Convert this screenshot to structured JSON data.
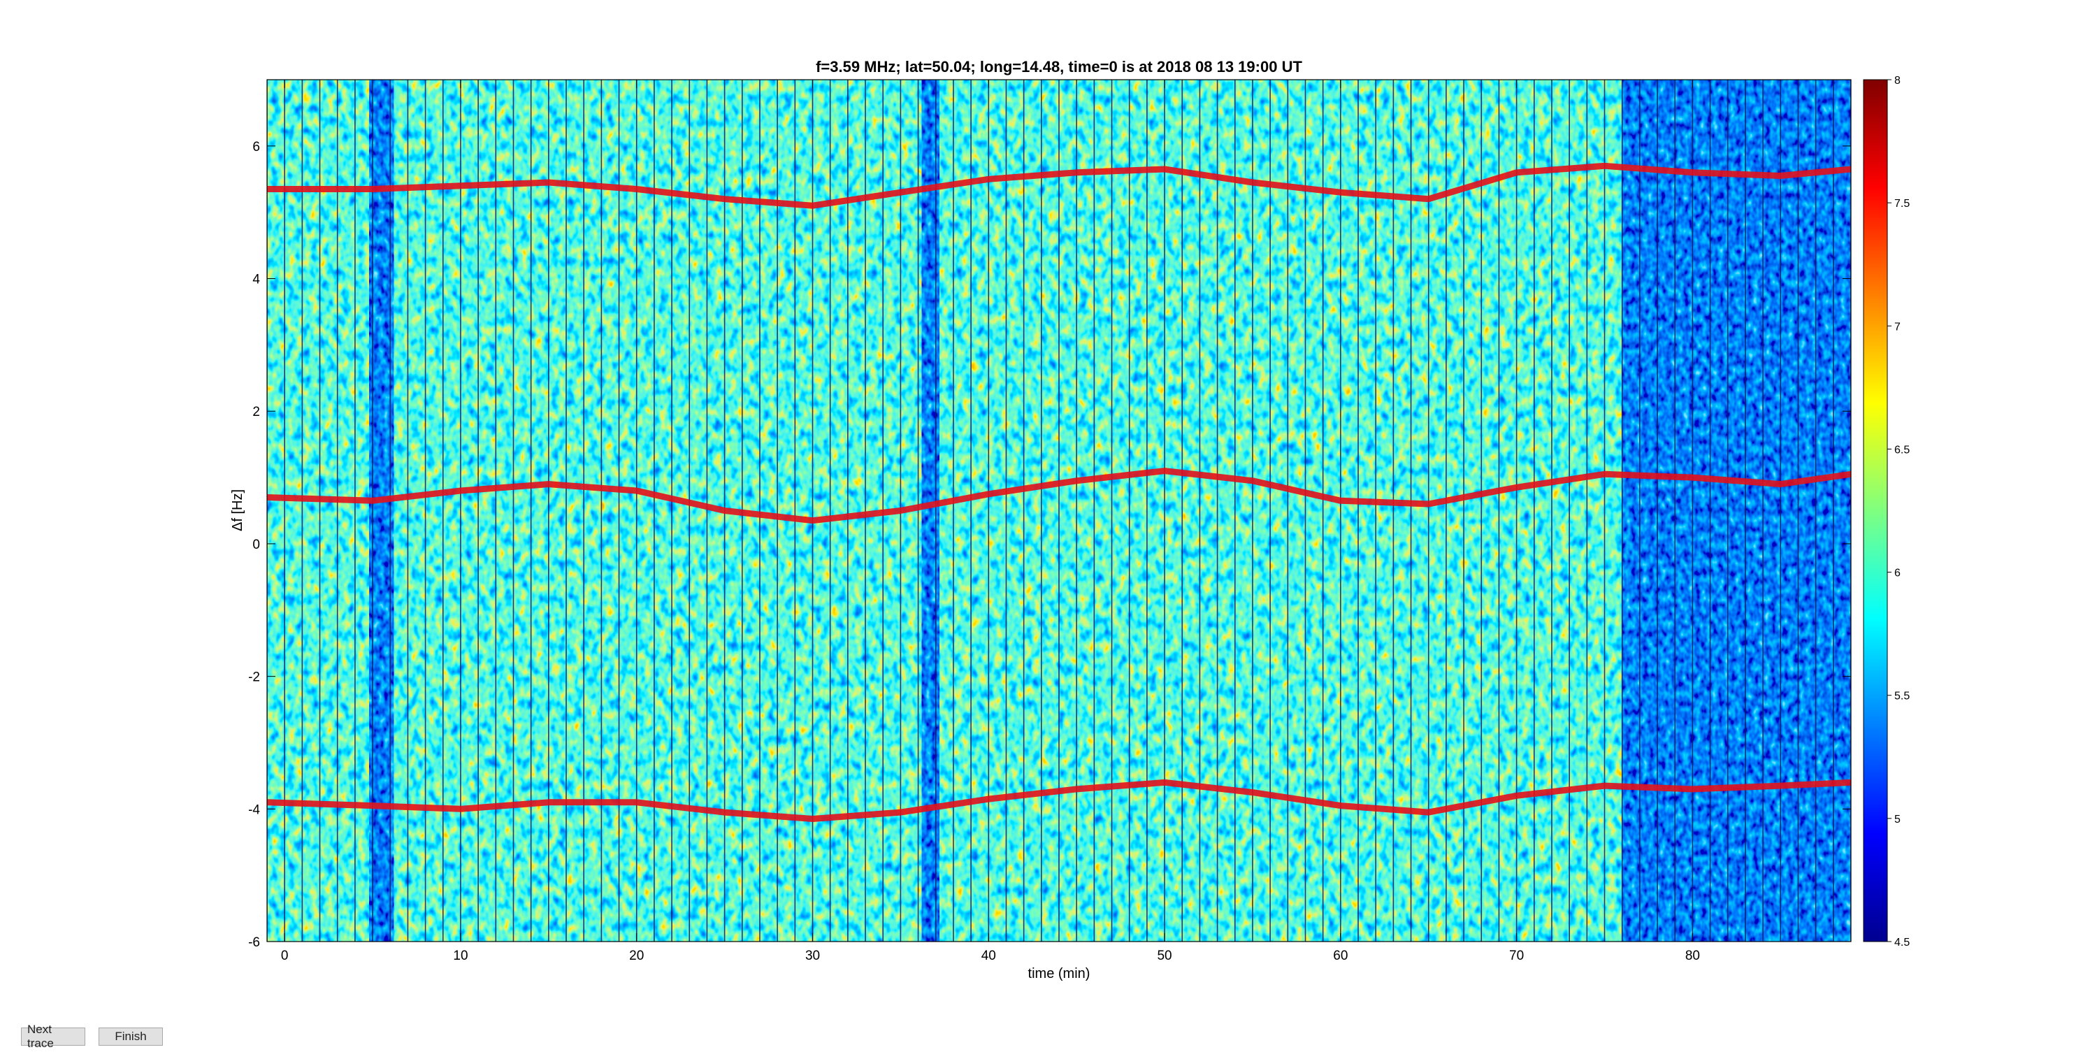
{
  "buttons": {
    "next_trace": "Next trace",
    "finish": "Finish"
  },
  "chart_data": {
    "type": "heatmap",
    "title": "f=3.59 MHz;  lat=50.04; long=14.48, time=0 is at 2018 08 13 19:00 UT",
    "xlabel": "time (min)",
    "ylabel": "Δf [Hz]",
    "xlim": [
      -1,
      89
    ],
    "ylim": [
      -6,
      7
    ],
    "xticks": [
      0,
      10,
      20,
      30,
      40,
      50,
      60,
      70,
      80
    ],
    "yticks": [
      -6,
      -4,
      -2,
      0,
      2,
      4,
      6
    ],
    "colorbar": {
      "range": [
        4.5,
        8
      ],
      "ticks": [
        4.5,
        5,
        5.5,
        6,
        6.5,
        7,
        7.5,
        8
      ],
      "colormap": "jet"
    },
    "traces": [
      {
        "x": [
          -1,
          5,
          10,
          15,
          20,
          25,
          30,
          35,
          40,
          45,
          50,
          55,
          60,
          65,
          70,
          75,
          80,
          85,
          89
        ],
        "y": [
          5.35,
          5.35,
          5.4,
          5.45,
          5.35,
          5.2,
          5.1,
          5.3,
          5.5,
          5.6,
          5.65,
          5.45,
          5.3,
          5.2,
          5.6,
          5.7,
          5.6,
          5.55,
          5.65
        ]
      },
      {
        "x": [
          -1,
          5,
          10,
          15,
          20,
          25,
          30,
          35,
          40,
          45,
          50,
          55,
          60,
          65,
          70,
          75,
          80,
          85,
          89
        ],
        "y": [
          0.7,
          0.65,
          0.8,
          0.9,
          0.8,
          0.5,
          0.35,
          0.5,
          0.75,
          0.95,
          1.1,
          0.95,
          0.65,
          0.6,
          0.85,
          1.05,
          1.0,
          0.9,
          1.05
        ]
      },
      {
        "x": [
          -1,
          5,
          10,
          15,
          20,
          25,
          30,
          35,
          40,
          45,
          50,
          55,
          60,
          65,
          70,
          75,
          80,
          85,
          89
        ],
        "y": [
          -3.9,
          -3.95,
          -4.0,
          -3.9,
          -3.9,
          -4.05,
          -4.15,
          -4.05,
          -3.85,
          -3.7,
          -3.6,
          -3.75,
          -3.95,
          -4.05,
          -3.8,
          -3.65,
          -3.7,
          -3.65,
          -3.6
        ]
      }
    ],
    "low_intensity_bands": [
      [
        4.8,
        6.2
      ],
      [
        36.2,
        37.2
      ],
      [
        76,
        89
      ]
    ]
  }
}
